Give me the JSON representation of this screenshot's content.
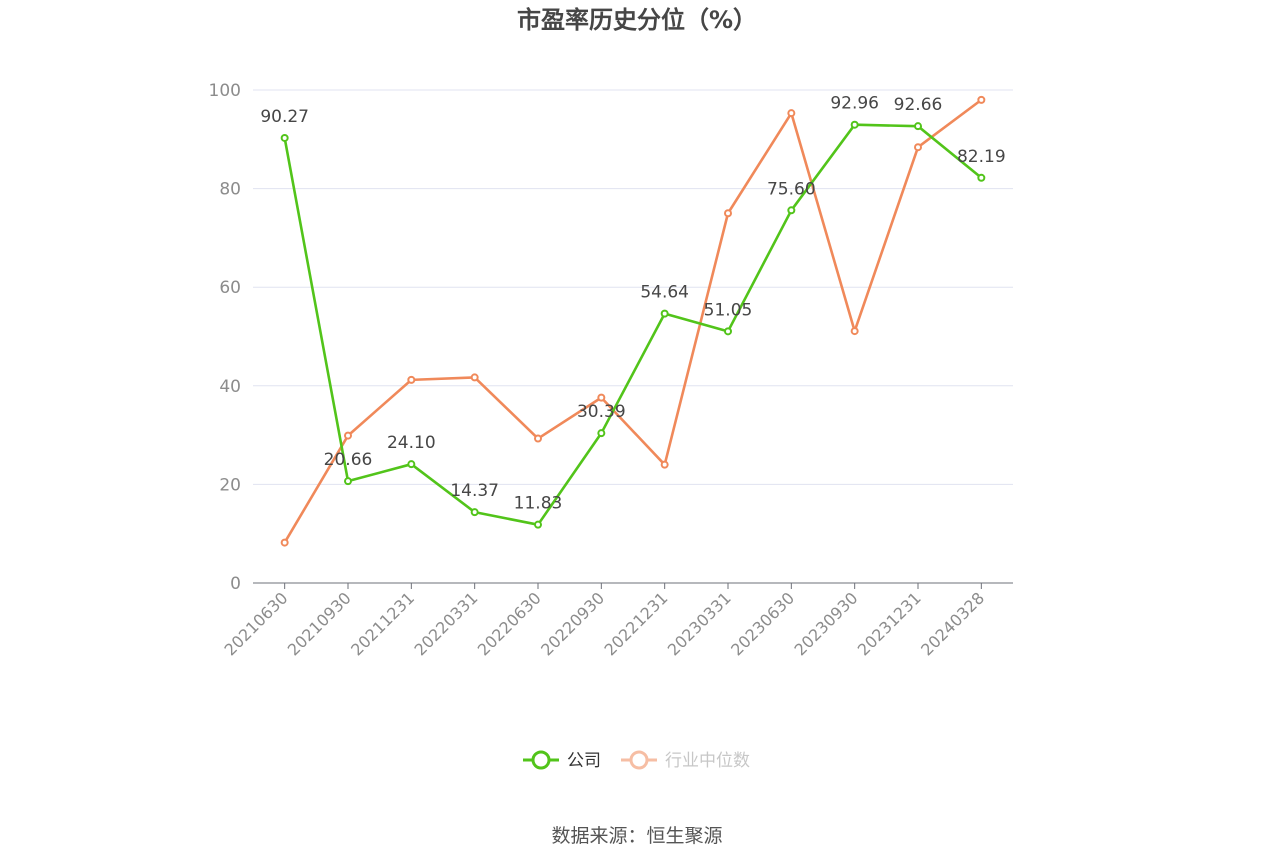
{
  "chart_data": {
    "type": "line",
    "title": "市盈率历史分位（%）",
    "categories": [
      "20210630",
      "20210930",
      "20211231",
      "20220331",
      "20220630",
      "20220930",
      "20221231",
      "20230331",
      "20230630",
      "20230930",
      "20231231",
      "20240328"
    ],
    "series": [
      {
        "name": "公司",
        "color": "#52c41a",
        "values": [
          90.27,
          20.66,
          24.1,
          14.37,
          11.83,
          30.39,
          54.64,
          51.05,
          75.6,
          92.96,
          92.66,
          82.19
        ],
        "labels": [
          "90.27",
          "20.66",
          "24.10",
          "14.37",
          "11.83",
          "30.39",
          "54.64",
          "51.05",
          "75.60",
          "92.96",
          "92.66",
          "82.19"
        ]
      },
      {
        "name": "行业中位数",
        "color": "#f0895a",
        "values": [
          8.2,
          29.9,
          41.2,
          41.7,
          29.3,
          37.6,
          24.0,
          75.0,
          95.3,
          51.1,
          88.4,
          98.0
        ]
      }
    ],
    "ylim": [
      0,
      100
    ],
    "yticks": [
      "0",
      "20",
      "40",
      "60",
      "80",
      "100"
    ],
    "grid": true,
    "legend_position": "bottom"
  },
  "source": "数据来源：恒生聚源"
}
